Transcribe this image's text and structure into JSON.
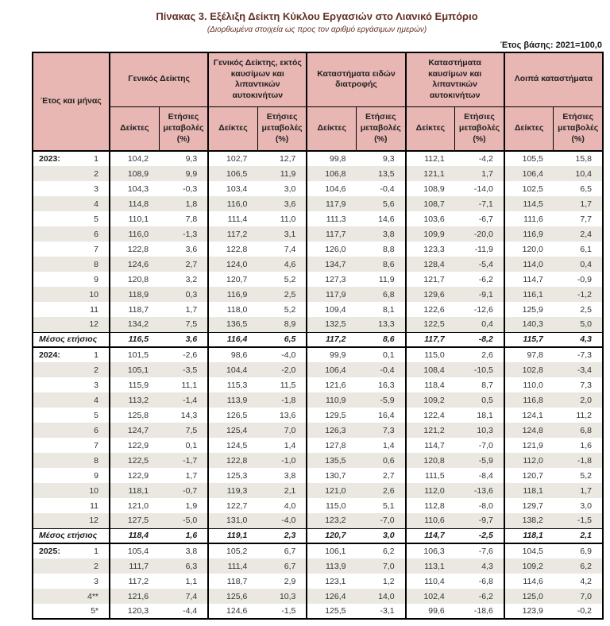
{
  "page": {
    "title": "Πίνακας 3. Εξέλιξη Δείκτη Κύκλου Εργασιών στο Λιανικό Εμπόριο",
    "subtitle": "(Διορθωμένα στοιχεία ως προς τον αριθμό εργάσιμων ημερών)",
    "base_year_note": "Έτος βάσης: 2021=100,0"
  },
  "colors": {
    "header_bg": "#e8b6b3",
    "stripe_bg": "#ebe8e1",
    "border": "#000000",
    "title_text": "#643125",
    "body_text": "#333333"
  },
  "table": {
    "row_header": "Έτος και μήνας",
    "column_groups": [
      "Γενικός Δείκτης",
      "Γενικός Δείκτης, εκτός καυσίμων και λιπαντικών αυτοκινήτων",
      "Καταστήματα ειδών διατροφής",
      "Καταστήματα καυσίμων και λιπαντικών αυτοκινήτων",
      "Λοιπά καταστήματα"
    ],
    "subheaders": {
      "index": "Δείκτες",
      "change": "Ετήσιες μεταβολές (%)"
    },
    "blocks": [
      {
        "year": "2023:",
        "rows": [
          {
            "month": "1",
            "values": [
              "104,2",
              "9,3",
              "102,7",
              "12,7",
              "99,8",
              "9,3",
              "112,1",
              "-4,2",
              "105,5",
              "15,8"
            ]
          },
          {
            "month": "2",
            "values": [
              "108,9",
              "9,9",
              "106,5",
              "11,9",
              "106,8",
              "13,5",
              "121,1",
              "1,7",
              "106,4",
              "10,4"
            ]
          },
          {
            "month": "3",
            "values": [
              "104,3",
              "-0,3",
              "103,4",
              "3,0",
              "104,6",
              "-0,4",
              "108,9",
              "-14,0",
              "102,5",
              "6,5"
            ]
          },
          {
            "month": "4",
            "values": [
              "114,8",
              "1,8",
              "116,0",
              "3,6",
              "117,9",
              "5,6",
              "108,7",
              "-7,1",
              "114,5",
              "1,7"
            ]
          },
          {
            "month": "5",
            "values": [
              "110,1",
              "7,8",
              "111,4",
              "11,0",
              "111,3",
              "14,6",
              "103,6",
              "-6,7",
              "111,6",
              "7,7"
            ]
          },
          {
            "month": "6",
            "values": [
              "116,0",
              "-1,3",
              "117,2",
              "3,1",
              "117,7",
              "3,8",
              "109,9",
              "-20,0",
              "116,9",
              "2,4"
            ]
          },
          {
            "month": "7",
            "values": [
              "122,8",
              "3,6",
              "122,8",
              "7,4",
              "126,0",
              "8,8",
              "123,3",
              "-11,9",
              "120,0",
              "6,1"
            ]
          },
          {
            "month": "8",
            "values": [
              "124,6",
              "2,7",
              "124,0",
              "4,6",
              "134,7",
              "8,6",
              "128,4",
              "-5,4",
              "114,0",
              "0,4"
            ]
          },
          {
            "month": "9",
            "values": [
              "120,8",
              "3,2",
              "120,7",
              "5,2",
              "127,3",
              "11,9",
              "121,7",
              "-6,2",
              "114,7",
              "-0,9"
            ]
          },
          {
            "month": "10",
            "values": [
              "118,9",
              "0,3",
              "116,9",
              "2,5",
              "117,9",
              "6,8",
              "129,6",
              "-9,1",
              "116,1",
              "-1,2"
            ]
          },
          {
            "month": "11",
            "values": [
              "118,7",
              "1,7",
              "118,0",
              "5,2",
              "109,4",
              "8,1",
              "122,6",
              "-12,6",
              "125,9",
              "2,5"
            ]
          },
          {
            "month": "12",
            "values": [
              "134,2",
              "7,5",
              "136,5",
              "8,9",
              "132,5",
              "13,3",
              "122,5",
              "0,4",
              "140,3",
              "5,0"
            ]
          }
        ],
        "mean": {
          "label": "Μέσος ετήσιος",
          "values": [
            "116,5",
            "3,6",
            "116,4",
            "6,5",
            "117,2",
            "8,6",
            "117,7",
            "-8,2",
            "115,7",
            "4,3"
          ]
        }
      },
      {
        "year": "2024:",
        "rows": [
          {
            "month": "1",
            "values": [
              "101,5",
              "-2,6",
              "98,6",
              "-4,0",
              "99,9",
              "0,1",
              "115,0",
              "2,6",
              "97,8",
              "-7,3"
            ]
          },
          {
            "month": "2",
            "values": [
              "105,1",
              "-3,5",
              "104,4",
              "-2,0",
              "106,4",
              "-0,4",
              "108,4",
              "-10,5",
              "102,8",
              "-3,4"
            ]
          },
          {
            "month": "3",
            "values": [
              "115,9",
              "11,1",
              "115,3",
              "11,5",
              "121,6",
              "16,3",
              "118,4",
              "8,7",
              "110,0",
              "7,3"
            ]
          },
          {
            "month": "4",
            "values": [
              "113,2",
              "-1,4",
              "113,9",
              "-1,8",
              "110,9",
              "-5,9",
              "109,2",
              "0,5",
              "116,8",
              "2,0"
            ]
          },
          {
            "month": "5",
            "values": [
              "125,8",
              "14,3",
              "126,5",
              "13,6",
              "129,5",
              "16,4",
              "122,4",
              "18,1",
              "124,1",
              "11,2"
            ]
          },
          {
            "month": "6",
            "values": [
              "124,7",
              "7,5",
              "125,4",
              "7,0",
              "126,3",
              "7,3",
              "121,2",
              "10,3",
              "124,8",
              "6,8"
            ]
          },
          {
            "month": "7",
            "values": [
              "122,9",
              "0,1",
              "124,5",
              "1,4",
              "127,8",
              "1,4",
              "114,7",
              "-7,0",
              "121,9",
              "1,6"
            ]
          },
          {
            "month": "8",
            "values": [
              "122,5",
              "-1,7",
              "122,8",
              "-1,0",
              "135,5",
              "0,6",
              "120,8",
              "-5,9",
              "112,0",
              "-1,8"
            ]
          },
          {
            "month": "9",
            "values": [
              "122,9",
              "1,7",
              "125,3",
              "3,8",
              "130,7",
              "2,7",
              "111,5",
              "-8,4",
              "120,7",
              "5,2"
            ]
          },
          {
            "month": "10",
            "values": [
              "118,1",
              "-0,7",
              "119,3",
              "2,1",
              "121,0",
              "2,6",
              "112,0",
              "-13,6",
              "118,1",
              "1,7"
            ]
          },
          {
            "month": "11",
            "values": [
              "121,0",
              "1,9",
              "122,7",
              "4,0",
              "115,0",
              "5,1",
              "112,8",
              "-8,0",
              "129,7",
              "3,0"
            ]
          },
          {
            "month": "12",
            "values": [
              "127,5",
              "-5,0",
              "131,0",
              "-4,0",
              "123,2",
              "-7,0",
              "110,6",
              "-9,7",
              "138,2",
              "-1,5"
            ]
          }
        ],
        "mean": {
          "label": "Μέσος ετήσιος",
          "values": [
            "118,4",
            "1,6",
            "119,1",
            "2,3",
            "120,7",
            "3,0",
            "114,7",
            "-2,5",
            "118,1",
            "2,1"
          ]
        }
      },
      {
        "year": "2025:",
        "rows": [
          {
            "month": "1",
            "values": [
              "105,4",
              "3,8",
              "105,2",
              "6,7",
              "106,1",
              "6,2",
              "106,3",
              "-7,6",
              "104,5",
              "6,9"
            ]
          },
          {
            "month": "2",
            "values": [
              "111,7",
              "6,3",
              "111,4",
              "6,7",
              "113,9",
              "7,0",
              "113,1",
              "4,3",
              "109,2",
              "6,2"
            ]
          },
          {
            "month": "3",
            "values": [
              "117,2",
              "1,1",
              "118,7",
              "2,9",
              "123,1",
              "1,2",
              "110,4",
              "-6,8",
              "114,6",
              "4,2"
            ]
          },
          {
            "month": "4**",
            "values": [
              "121,6",
              "7,4",
              "125,6",
              "10,3",
              "126,4",
              "14,0",
              "102,4",
              "-6,2",
              "125,0",
              "7,0"
            ]
          },
          {
            "month": "5*",
            "values": [
              "120,3",
              "-4,4",
              "124,6",
              "-1,5",
              "125,5",
              "-3,1",
              "99,6",
              "-18,6",
              "123,9",
              "-0,2"
            ]
          }
        ],
        "mean": null
      }
    ]
  }
}
